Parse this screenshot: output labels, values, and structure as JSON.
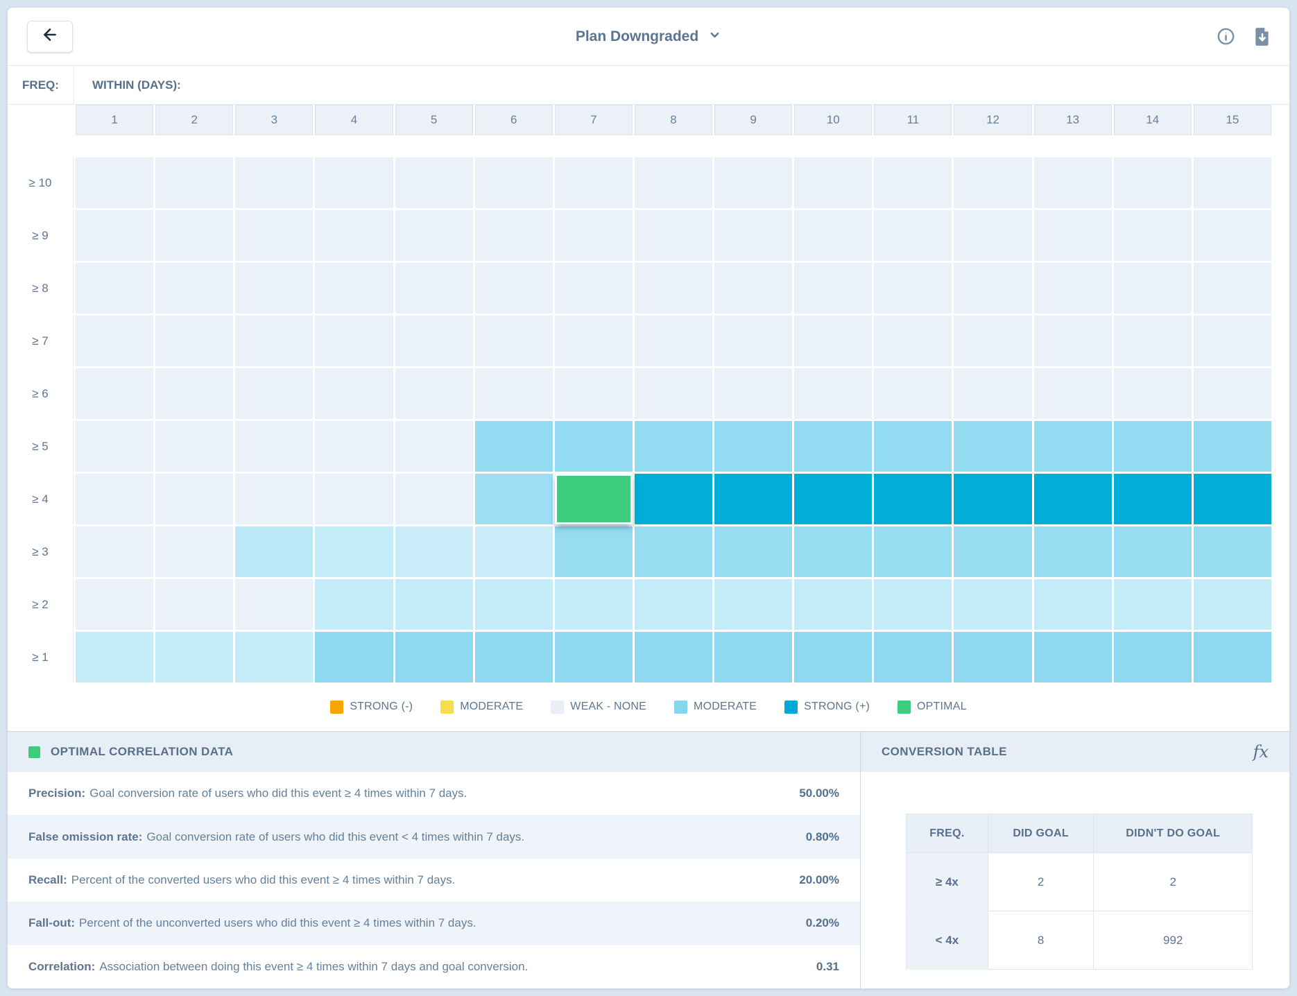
{
  "header": {
    "title": "Plan Downgraded"
  },
  "heatmap": {
    "freq_label": "FREQ:",
    "within_label": "WITHIN (DAYS):",
    "columns": [
      "1",
      "2",
      "3",
      "4",
      "5",
      "6",
      "7",
      "8",
      "9",
      "10",
      "11",
      "12",
      "13",
      "14",
      "15"
    ],
    "palette": {
      "w": "#eaf1f8",
      "l1": "#bde8f7",
      "l2": "#c3ebf8",
      "l3": "#c9edf9",
      "m1": "#8ed9f0",
      "m2": "#92dbf0",
      "m3": "#97dcf1",
      "m4": "#9cdef2",
      "s": "#00aed8",
      "o": "#3dcb7d"
    },
    "rows": [
      {
        "label": "≥ 10",
        "cells": [
          "w",
          "w",
          "w",
          "w",
          "w",
          "w",
          "w",
          "w",
          "w",
          "w",
          "w",
          "w",
          "w",
          "w",
          "w"
        ]
      },
      {
        "label": "≥ 9",
        "cells": [
          "w",
          "w",
          "w",
          "w",
          "w",
          "w",
          "w",
          "w",
          "w",
          "w",
          "w",
          "w",
          "w",
          "w",
          "w"
        ]
      },
      {
        "label": "≥ 8",
        "cells": [
          "w",
          "w",
          "w",
          "w",
          "w",
          "w",
          "w",
          "w",
          "w",
          "w",
          "w",
          "w",
          "w",
          "w",
          "w"
        ]
      },
      {
        "label": "≥ 7",
        "cells": [
          "w",
          "w",
          "w",
          "w",
          "w",
          "w",
          "w",
          "w",
          "w",
          "w",
          "w",
          "w",
          "w",
          "w",
          "w"
        ]
      },
      {
        "label": "≥ 6",
        "cells": [
          "w",
          "w",
          "w",
          "w",
          "w",
          "w",
          "w",
          "w",
          "w",
          "w",
          "w",
          "w",
          "w",
          "w",
          "w"
        ]
      },
      {
        "label": "≥ 5",
        "cells": [
          "w",
          "w",
          "w",
          "w",
          "w",
          "m2",
          "m2",
          "m2",
          "m2",
          "m2",
          "m2",
          "m2",
          "m2",
          "m2",
          "m2"
        ]
      },
      {
        "label": "≥ 4",
        "cells": [
          "w",
          "w",
          "w",
          "w",
          "w",
          "m4",
          "o",
          "s",
          "s",
          "s",
          "s",
          "s",
          "s",
          "s",
          "s"
        ]
      },
      {
        "label": "≥ 3",
        "cells": [
          "w",
          "w",
          "l1",
          "l2",
          "l3",
          "l3",
          "m3",
          "m3",
          "m3",
          "m3",
          "m3",
          "m3",
          "m3",
          "m3",
          "m3"
        ]
      },
      {
        "label": "≥ 2",
        "cells": [
          "w",
          "w",
          "w",
          "l2",
          "l2",
          "l2",
          "l2",
          "l2",
          "l2",
          "l2",
          "l2",
          "l2",
          "l2",
          "l2",
          "l2"
        ]
      },
      {
        "label": "≥ 1",
        "cells": [
          "l2",
          "l2",
          "l2",
          "m1",
          "m1",
          "m1",
          "m1",
          "m1",
          "m1",
          "m1",
          "m1",
          "m1",
          "m1",
          "m1",
          "m1"
        ]
      }
    ],
    "optimal_cell": {
      "row_label": "≥ 4",
      "column": "7"
    }
  },
  "legend": [
    {
      "label": "STRONG (-)",
      "color": "#f4a701",
      "textured": false
    },
    {
      "label": "MODERATE",
      "color": "#f8dc4a",
      "textured": false
    },
    {
      "label": "WEAK - NONE",
      "color": "#e8eff7",
      "textured": false
    },
    {
      "label": "MODERATE",
      "color": "#86d6ee",
      "textured": true
    },
    {
      "label": "STRONG (+)",
      "color": "#00a8d6",
      "textured": false
    },
    {
      "label": "OPTIMAL",
      "color": "#3dcb7d",
      "textured": false
    }
  ],
  "optimal_panel": {
    "title": "OPTIMAL CORRELATION DATA",
    "swatch_color": "#3dcb7d",
    "metrics": [
      {
        "label": "Precision:",
        "desc": "Goal conversion rate of users who did this event ≥ 4 times within 7 days.",
        "value": "50.00%"
      },
      {
        "label": "False omission rate:",
        "desc": "Goal conversion rate of users who did this event < 4 times within 7 days.",
        "value": "0.80%"
      },
      {
        "label": "Recall:",
        "desc": "Percent of the converted users who did this event ≥ 4 times within 7 days.",
        "value": "20.00%"
      },
      {
        "label": "Fall-out:",
        "desc": "Percent of the unconverted users who did this event ≥ 4 times within 7 days.",
        "value": "0.20%"
      },
      {
        "label": "Correlation:",
        "desc": "Association between doing this event ≥ 4 times within 7 days and goal conversion.",
        "value": "0.31"
      }
    ]
  },
  "conversion_panel": {
    "title": "CONVERSION TABLE",
    "fx_icon": "fx",
    "headers": [
      "FREQ.",
      "DID GOAL",
      "DIDN'T DO GOAL"
    ],
    "rows": [
      {
        "freq": "≥ 4x",
        "did_goal": "2",
        "didnt_do_goal": "2"
      },
      {
        "freq": "< 4x",
        "did_goal": "8",
        "didnt_do_goal": "992"
      }
    ]
  }
}
